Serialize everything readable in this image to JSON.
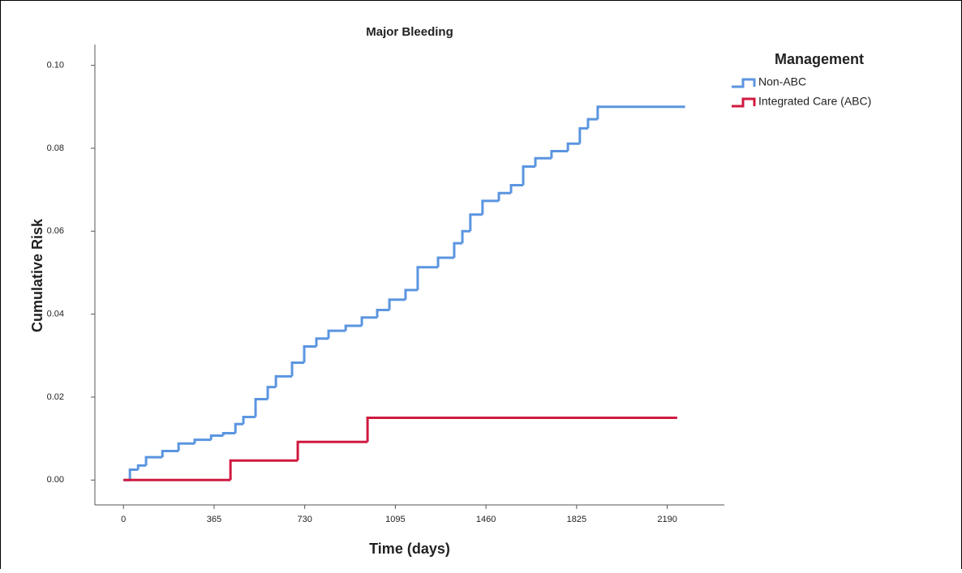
{
  "chart_data": {
    "type": "step",
    "title": "Major Bleeding",
    "x_label": "Time (days)",
    "y_label": "Cumulative Risk",
    "legend_title": "Management",
    "legend_position": "right",
    "xlim": [
      -115,
      2420
    ],
    "xticks": [
      0,
      365,
      730,
      1095,
      1460,
      1825,
      2190
    ],
    "ylim": [
      -0.006,
      0.105
    ],
    "yticks": [
      {
        "value": 0,
        "label": "0.00"
      },
      {
        "value": 0.02,
        "label": "0.02"
      },
      {
        "value": 0.04,
        "label": "0.04"
      },
      {
        "value": 0.06,
        "label": "0.06"
      },
      {
        "value": 0.08,
        "label": "0.08"
      },
      {
        "value": 0.1,
        "label": "0.10"
      }
    ],
    "grid": false,
    "series": [
      {
        "name": "Non-ABC",
        "color": "#5b95e0",
        "x": [
          0,
          26,
          59,
          91,
          157,
          222,
          287,
          353,
          402,
          451,
          483,
          532,
          581,
          614,
          679,
          728,
          777,
          826,
          895,
          960,
          1022,
          1071,
          1136,
          1185,
          1267,
          1332,
          1365,
          1397,
          1446,
          1512,
          1561,
          1610,
          1659,
          1724,
          1790,
          1838,
          1871,
          1910,
          2262
        ],
        "values": [
          0,
          0.0025,
          0.0035,
          0.0055,
          0.007,
          0.0088,
          0.0097,
          0.0107,
          0.0113,
          0.0135,
          0.0152,
          0.0195,
          0.0224,
          0.025,
          0.0283,
          0.0322,
          0.0341,
          0.036,
          0.0372,
          0.0392,
          0.041,
          0.0435,
          0.0458,
          0.0513,
          0.0536,
          0.0571,
          0.06,
          0.064,
          0.0673,
          0.0692,
          0.0711,
          0.0756,
          0.0776,
          0.0793,
          0.0811,
          0.0848,
          0.087,
          0.09,
          0.09
        ]
      },
      {
        "name": "Integrated Care (ABC)",
        "color": "#d0193f",
        "x": [
          0,
          431,
          702,
          983,
          2230
        ],
        "values": [
          0,
          0.0047,
          0.0092,
          0.015,
          0.015
        ]
      }
    ]
  }
}
